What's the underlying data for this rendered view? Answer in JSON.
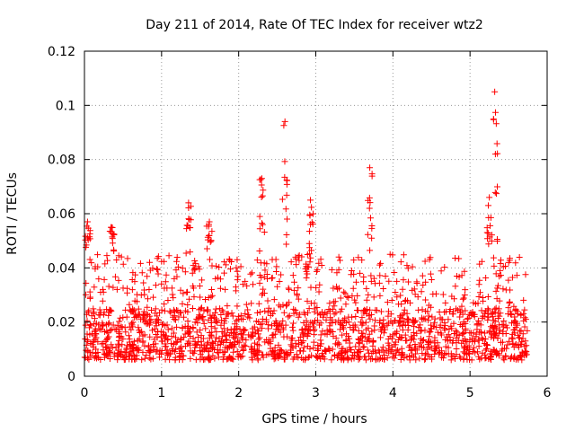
{
  "chart_data": {
    "type": "scatter",
    "title": "Day 211 of 2014, Rate Of TEC Index for receiver wtz2",
    "xlabel": "GPS time / hours",
    "ylabel": "ROTI / TECUs",
    "xlim": [
      0,
      6
    ],
    "ylim": [
      0,
      0.12
    ],
    "xticks": [
      0,
      1,
      2,
      3,
      4,
      5,
      6
    ],
    "xtick_labels": [
      "0",
      "1",
      "2",
      "3",
      "4",
      "5",
      "6"
    ],
    "yticks": [
      0,
      0.02,
      0.04,
      0.06,
      0.08,
      0.1,
      0.12
    ],
    "ytick_labels": [
      "0",
      "0.02",
      "0.04",
      "0.06",
      "0.08",
      "0.1",
      "0.12"
    ],
    "grid": true,
    "marker": "+",
    "color": "#ff0000",
    "x_extent_hours": [
      0,
      5.75
    ],
    "baseline_band": [
      0.006,
      0.025
    ],
    "secondary_band": [
      0.025,
      0.045
    ],
    "notable_peaks": [
      {
        "x": 0.04,
        "y": 0.057
      },
      {
        "x": 0.35,
        "y": 0.055
      },
      {
        "x": 1.35,
        "y": 0.064
      },
      {
        "x": 1.62,
        "y": 0.057
      },
      {
        "x": 2.3,
        "y": 0.073
      },
      {
        "x": 2.6,
        "y": 0.094
      },
      {
        "x": 2.93,
        "y": 0.065
      },
      {
        "x": 3.7,
        "y": 0.077
      },
      {
        "x": 5.25,
        "y": 0.066
      },
      {
        "x": 5.32,
        "y": 0.105
      }
    ]
  }
}
